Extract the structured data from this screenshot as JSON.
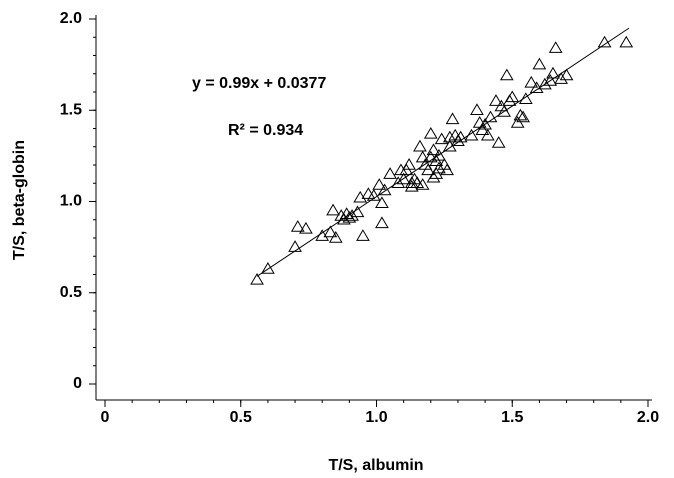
{
  "chart_data": {
    "type": "scatter",
    "x_label": "T/S, albumin",
    "y_label": "T/S, beta-globin",
    "annotations": [
      "y = 0.99x + 0.0377",
      "R² = 0.934"
    ],
    "xlim": [
      0,
      2
    ],
    "ylim": [
      0,
      2
    ],
    "xticks": [
      0,
      0.5,
      {
        "value": 1,
        "label": "1.0"
      },
      1.5,
      {
        "value": 2,
        "label": "2.0"
      }
    ],
    "yticks": [
      0,
      0.5,
      {
        "value": 1,
        "label": "1.0"
      },
      1.5,
      {
        "value": 2,
        "label": "2.0"
      }
    ],
    "minor_step": 0.1,
    "marker": "open-triangle",
    "color": "#000000",
    "points": {
      "x": [
        0.56,
        0.6,
        0.7,
        0.71,
        0.74,
        0.8,
        0.83,
        0.84,
        0.85,
        0.87,
        0.88,
        0.89,
        0.9,
        0.91,
        0.93,
        0.94,
        0.95,
        0.97,
        0.99,
        1.01,
        1.02,
        1.02,
        1.03,
        1.05,
        1.08,
        1.1,
        1.11,
        1.12,
        1.13,
        1.14,
        1.15,
        1.16,
        1.17,
        1.18,
        1.19,
        1.2,
        1.2,
        1.21,
        1.22,
        1.22,
        1.23,
        1.24,
        1.25,
        1.26,
        1.27,
        1.28,
        1.29,
        1.3,
        1.31,
        1.35,
        1.37,
        1.38,
        1.4,
        1.41,
        1.42,
        1.44,
        1.45,
        1.46,
        1.48,
        1.49,
        1.5,
        1.52,
        1.53,
        1.54,
        1.55,
        1.57,
        1.59,
        1.6,
        1.62,
        1.64,
        1.65,
        1.66,
        1.68,
        1.7,
        1.84,
        1.92,
        1.17,
        1.23,
        1.21,
        1.09,
        1.13,
        1.27,
        1.39,
        1.47
      ],
      "y": [
        0.57,
        0.63,
        0.75,
        0.86,
        0.85,
        0.81,
        0.83,
        0.95,
        0.8,
        0.92,
        0.9,
        0.93,
        0.91,
        0.92,
        0.94,
        1.02,
        0.81,
        1.04,
        1.03,
        1.09,
        0.88,
        0.99,
        1.06,
        1.15,
        1.1,
        1.12,
        1.17,
        1.2,
        1.08,
        1.12,
        1.1,
        1.3,
        1.09,
        1.2,
        1.17,
        1.37,
        1.24,
        1.28,
        1.15,
        1.22,
        1.18,
        1.34,
        1.2,
        1.17,
        1.3,
        1.45,
        1.36,
        1.33,
        1.35,
        1.36,
        1.5,
        1.43,
        1.42,
        1.36,
        1.46,
        1.55,
        1.32,
        1.52,
        1.69,
        1.55,
        1.57,
        1.43,
        1.47,
        1.46,
        1.56,
        1.65,
        1.62,
        1.75,
        1.64,
        1.66,
        1.7,
        1.84,
        1.67,
        1.69,
        1.87,
        1.87,
        1.24,
        1.25,
        1.13,
        1.17,
        1.1,
        1.35,
        1.39,
        1.49
      ]
    },
    "fit_line": {
      "x": [
        0.56,
        1.93
      ],
      "y": [
        0.59,
        1.95
      ]
    }
  }
}
